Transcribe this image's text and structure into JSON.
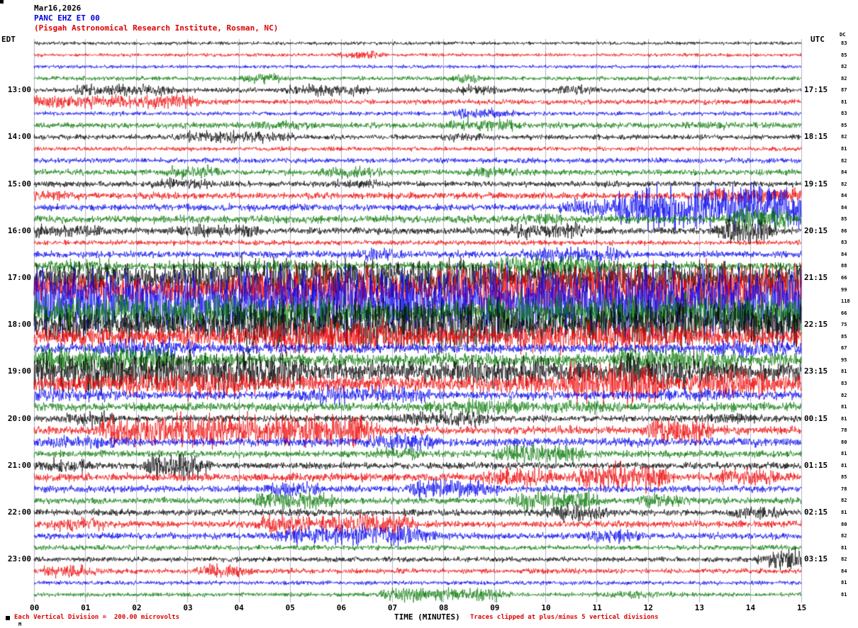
{
  "header": {
    "date": "Mar16,2026",
    "station": "PANC EHZ ET 00",
    "institute": "(Pisgah Astronomical Research Institute, Rosman, NC)",
    "left_tz": "EDT",
    "right_tz": "UTC",
    "dc_label": "DC"
  },
  "footer": {
    "division_note": "Each Vertical Division =  200.00 microvolts",
    "axis_label": "TIME (MINUTES)",
    "clip_note": "Traces clipped at plus/minus 5 vertical divisions",
    "corner_mark": "M"
  },
  "chart_data": {
    "type": "line",
    "title": "PANC EHZ ET 00 helicorder (15-minute seismogram traces)",
    "xlabel": "TIME (MINUTES)",
    "x_range": [
      0,
      15
    ],
    "x_ticks": [
      "00",
      "01",
      "02",
      "03",
      "04",
      "05",
      "06",
      "07",
      "08",
      "09",
      "10",
      "11",
      "12",
      "13",
      "14",
      "15"
    ],
    "grid": "vertical-minute-lines",
    "colors_cycle": [
      "#000000",
      "#ee0000",
      "#0000ee",
      "#007700"
    ],
    "minutes_per_row": 15,
    "start_edt": "12:00",
    "end_edt": "23:45",
    "clip_divisions": 5,
    "microvolts_per_division": 200.0,
    "left_hour_labels": [
      "13:00",
      "14:00",
      "15:00",
      "16:00",
      "17:00",
      "18:00",
      "19:00",
      "20:00",
      "21:00",
      "22:00",
      "23:00"
    ],
    "right_hour_labels": [
      "17:15",
      "18:15",
      "19:15",
      "20:15",
      "21:15",
      "22:15",
      "23:15",
      "00:15",
      "01:15",
      "02:15",
      "03:15"
    ],
    "rows": [
      {
        "dc": 83,
        "amp": 2,
        "bursts": []
      },
      {
        "dc": 85,
        "amp": 2,
        "bursts": [
          [
            6.2,
            6.6,
            5
          ]
        ]
      },
      {
        "dc": 82,
        "amp": 2,
        "bursts": []
      },
      {
        "dc": 82,
        "amp": 2.5,
        "bursts": [
          [
            4.3,
            4.7,
            6
          ],
          [
            8.3,
            8.6,
            5
          ]
        ]
      },
      {
        "dc": 87,
        "amp": 3,
        "bursts": [
          [
            1,
            2.6,
            7
          ],
          [
            5.2,
            6.3,
            7
          ],
          [
            8.4,
            8.9,
            6
          ],
          [
            10.4,
            10.8,
            6
          ]
        ]
      },
      {
        "dc": 81,
        "amp": 3,
        "bursts": [
          [
            0,
            3,
            8
          ],
          [
            2,
            2.4,
            9
          ]
        ]
      },
      {
        "dc": 83,
        "amp": 2.5,
        "bursts": [
          [
            8.3,
            9.2,
            6
          ]
        ]
      },
      {
        "dc": 85,
        "amp": 3.5,
        "bursts": [
          [
            4.5,
            5.2,
            6
          ],
          [
            8.3,
            9.3,
            7
          ],
          [
            13,
            13.4,
            5
          ]
        ]
      },
      {
        "dc": 82,
        "amp": 3,
        "bursts": [
          [
            3,
            4.8,
            7
          ],
          [
            8.2,
            8.6,
            5
          ]
        ]
      },
      {
        "dc": 81,
        "amp": 2.5,
        "bursts": []
      },
      {
        "dc": 82,
        "amp": 3,
        "bursts": []
      },
      {
        "dc": 84,
        "amp": 3.5,
        "bursts": [
          [
            2.8,
            3.4,
            8
          ],
          [
            5.8,
            6.6,
            7
          ],
          [
            8.6,
            9.4,
            6
          ]
        ]
      },
      {
        "dc": 82,
        "amp": 3.5,
        "bursts": [
          [
            2.5,
            3.2,
            7
          ],
          [
            6,
            6.5,
            6
          ]
        ]
      },
      {
        "dc": 84,
        "amp": 4,
        "bursts": [
          [
            0.2,
            0.6,
            6
          ],
          [
            13.2,
            15,
            9
          ]
        ]
      },
      {
        "dc": 84,
        "amp": 4,
        "bursts": [
          [
            10.5,
            11.5,
            10
          ],
          [
            11.5,
            15,
            26
          ]
        ]
      },
      {
        "dc": 85,
        "amp": 4.5,
        "bursts": [
          [
            9.7,
            10.3,
            7
          ],
          [
            13.8,
            14.6,
            14
          ]
        ]
      },
      {
        "dc": 86,
        "amp": 4,
        "bursts": [
          [
            0,
            1.2,
            8
          ],
          [
            3,
            4.2,
            8
          ],
          [
            9.4,
            10.6,
            9
          ],
          [
            13.6,
            14.2,
            18
          ]
        ]
      },
      {
        "dc": 83,
        "amp": 3,
        "bursts": []
      },
      {
        "dc": 84,
        "amp": 4,
        "bursts": [
          [
            6.5,
            7,
            7
          ],
          [
            9.8,
            11.3,
            9
          ]
        ]
      },
      {
        "dc": 88,
        "amp": 5,
        "bursts": [
          [
            0.5,
            1.5,
            8
          ],
          [
            4.3,
            5,
            8
          ],
          [
            9.3,
            11,
            13
          ]
        ]
      },
      {
        "dc": 66,
        "amp": 12,
        "bursts": [
          [
            0,
            3,
            16
          ],
          [
            3,
            9,
            22
          ],
          [
            10,
            15,
            20
          ]
        ]
      },
      {
        "dc": 99,
        "amp": 16,
        "bursts": [
          [
            4.5,
            6.5,
            30
          ],
          [
            8,
            15,
            30
          ]
        ]
      },
      {
        "dc": 118,
        "amp": 20,
        "bursts": [
          [
            0,
            15,
            38
          ]
        ]
      },
      {
        "dc": 66,
        "amp": 14,
        "bursts": [
          [
            0,
            6,
            20
          ],
          [
            9,
            15,
            22
          ]
        ]
      },
      {
        "dc": 75,
        "amp": 18,
        "bursts": [
          [
            4,
            9,
            30
          ],
          [
            11,
            15,
            26
          ]
        ]
      },
      {
        "dc": 85,
        "amp": 12,
        "bursts": [
          [
            4.5,
            7,
            20
          ],
          [
            9.5,
            12,
            18
          ]
        ]
      },
      {
        "dc": 67,
        "amp": 6,
        "bursts": [
          [
            1.5,
            3,
            12
          ],
          [
            13.5,
            15,
            10
          ]
        ]
      },
      {
        "dc": 95,
        "amp": 8,
        "bursts": [
          [
            0,
            2.5,
            16
          ],
          [
            11.5,
            13.5,
            14
          ]
        ]
      },
      {
        "dc": 81,
        "amp": 12,
        "bursts": [
          [
            0,
            5,
            22
          ],
          [
            8.5,
            10,
            16
          ],
          [
            11.5,
            13,
            20
          ]
        ]
      },
      {
        "dc": 83,
        "amp": 10,
        "bursts": [
          [
            2,
            4,
            16
          ],
          [
            10.5,
            12,
            24
          ],
          [
            13.2,
            14.2,
            18
          ]
        ]
      },
      {
        "dc": 82,
        "amp": 5,
        "bursts": [
          [
            0,
            1.5,
            8
          ],
          [
            5.5,
            7.5,
            10
          ],
          [
            12.5,
            13.5,
            8
          ]
        ]
      },
      {
        "dc": 81,
        "amp": 5,
        "bursts": [
          [
            8,
            9.5,
            9
          ],
          [
            10.3,
            11.2,
            8
          ]
        ]
      },
      {
        "dc": 81,
        "amp": 4,
        "bursts": [
          [
            0.8,
            1.4,
            9
          ],
          [
            7.3,
            8.7,
            9
          ],
          [
            13.4,
            13.9,
            7
          ]
        ]
      },
      {
        "dc": 78,
        "amp": 5,
        "bursts": [
          [
            1.5,
            6.5,
            18
          ],
          [
            12.2,
            13,
            16
          ]
        ]
      },
      {
        "dc": 80,
        "amp": 5,
        "bursts": [
          [
            0.5,
            1.5,
            8
          ],
          [
            6.8,
            7.6,
            10
          ]
        ]
      },
      {
        "dc": 81,
        "amp": 4,
        "bursts": [
          [
            6.8,
            7.4,
            8
          ],
          [
            9.3,
            10.6,
            12
          ]
        ]
      },
      {
        "dc": 81,
        "amp": 4,
        "bursts": [
          [
            0.3,
            0.9,
            8
          ],
          [
            2.4,
            3.2,
            16
          ]
        ]
      },
      {
        "dc": 85,
        "amp": 5,
        "bursts": [
          [
            9,
            10,
            12
          ],
          [
            10.8,
            12.2,
            16
          ],
          [
            13.5,
            14.3,
            10
          ]
        ]
      },
      {
        "dc": 78,
        "amp": 4,
        "bursts": [
          [
            4.8,
            5.4,
            10
          ],
          [
            7.6,
            8.8,
            12
          ]
        ]
      },
      {
        "dc": 82,
        "amp": 4,
        "bursts": [
          [
            4.6,
            5.6,
            12
          ],
          [
            9.6,
            10.8,
            12
          ],
          [
            12,
            12.6,
            8
          ]
        ]
      },
      {
        "dc": 81,
        "amp": 4,
        "bursts": [
          [
            10.3,
            10.9,
            10
          ],
          [
            13.8,
            14.4,
            8
          ]
        ]
      },
      {
        "dc": 80,
        "amp": 4,
        "bursts": [
          [
            0.5,
            1.2,
            8
          ],
          [
            4.6,
            5.2,
            12
          ],
          [
            5.8,
            7.2,
            12
          ]
        ]
      },
      {
        "dc": 82,
        "amp": 4,
        "bursts": [
          [
            5,
            7.6,
            12
          ],
          [
            11,
            11.6,
            8
          ]
        ]
      },
      {
        "dc": 81,
        "amp": 3,
        "bursts": []
      },
      {
        "dc": 82,
        "amp": 3,
        "bursts": [
          [
            14.4,
            15,
            12
          ]
        ]
      },
      {
        "dc": 84,
        "amp": 3,
        "bursts": [
          [
            0.4,
            1,
            8
          ],
          [
            3.4,
            4,
            8
          ]
        ]
      },
      {
        "dc": 81,
        "amp": 2.5,
        "bursts": []
      },
      {
        "dc": 81,
        "amp": 2.5,
        "bursts": [
          [
            7,
            9,
            8
          ],
          [
            11.5,
            12.2,
            5
          ]
        ]
      }
    ]
  }
}
